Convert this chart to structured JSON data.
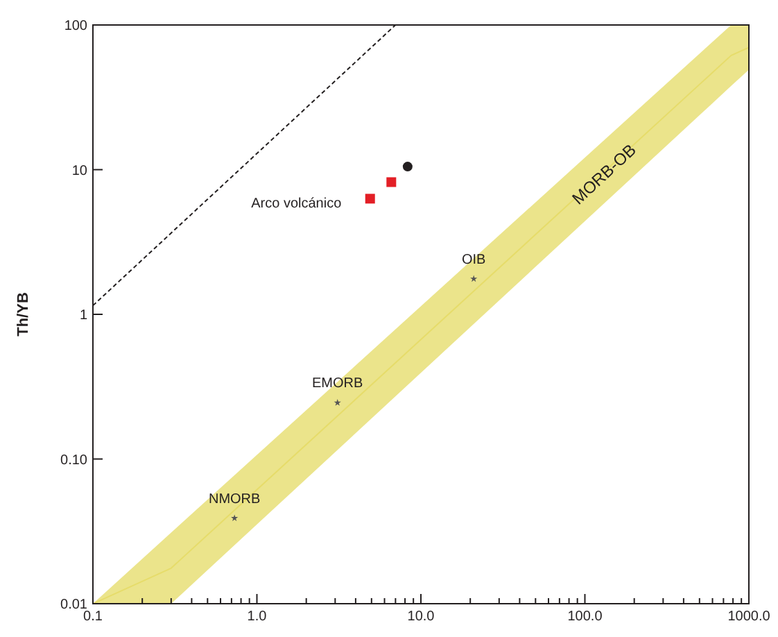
{
  "chart_data": {
    "type": "scatter",
    "ylabel": "Th/YB",
    "log": "xy",
    "grid": false,
    "xlim": [
      0.1,
      1000
    ],
    "ylim": [
      0.01,
      100
    ],
    "xticks": [
      {
        "value": 0.1,
        "label": "0.1"
      },
      {
        "value": 0.2,
        "label": null
      },
      {
        "value": 0.3,
        "label": null
      },
      {
        "value": 0.4,
        "label": null
      },
      {
        "value": 0.5,
        "label": null
      },
      {
        "value": 0.6,
        "label": null
      },
      {
        "value": 0.7,
        "label": null
      },
      {
        "value": 0.8,
        "label": null
      },
      {
        "value": 0.9,
        "label": null
      },
      {
        "value": 1,
        "label": "1.0"
      },
      {
        "value": 2,
        "label": null
      },
      {
        "value": 3,
        "label": null
      },
      {
        "value": 4,
        "label": null
      },
      {
        "value": 5,
        "label": null
      },
      {
        "value": 6,
        "label": null
      },
      {
        "value": 7,
        "label": null
      },
      {
        "value": 8,
        "label": null
      },
      {
        "value": 9,
        "label": null
      },
      {
        "value": 10,
        "label": "10.0"
      },
      {
        "value": 20,
        "label": null
      },
      {
        "value": 30,
        "label": null
      },
      {
        "value": 40,
        "label": null
      },
      {
        "value": 50,
        "label": null
      },
      {
        "value": 60,
        "label": null
      },
      {
        "value": 70,
        "label": null
      },
      {
        "value": 80,
        "label": null
      },
      {
        "value": 90,
        "label": null
      },
      {
        "value": 100,
        "label": "100.0"
      },
      {
        "value": 200,
        "label": null
      },
      {
        "value": 300,
        "label": null
      },
      {
        "value": 400,
        "label": null
      },
      {
        "value": 500,
        "label": null
      },
      {
        "value": 600,
        "label": null
      },
      {
        "value": 700,
        "label": null
      },
      {
        "value": 800,
        "label": null
      },
      {
        "value": 900,
        "label": null
      },
      {
        "value": 1000,
        "label": "1000.0"
      }
    ],
    "yticks": [
      0.01,
      {
        "value": 0.1,
        "label": "0.10"
      },
      1,
      10,
      100
    ],
    "series": [
      {
        "type": "line",
        "color": "#e6dc6a",
        "marker": "none",
        "x": [
          0.1,
          0.3,
          780,
          1000
        ],
        "values": [
          0.01,
          0.0176,
          61.6,
          70
        ],
        "upper": [
          0.01,
          0.031,
          100,
          100
        ],
        "lower": [
          0.01,
          0.01,
          37.9,
          49
        ]
      },
      {
        "type": "line",
        "color": "#231f20",
        "line_style": "dashed",
        "marker": "none",
        "x": [
          0.1,
          7
        ],
        "values": [
          1.15,
          100
        ]
      },
      {
        "color": "#555555",
        "marker": "star",
        "x": [
          0.73,
          3.1,
          21
        ],
        "values": [
          0.039,
          0.245,
          1.76
        ]
      },
      {
        "color": "#e31f26",
        "marker": "square",
        "x": [
          4.9,
          6.6
        ],
        "values": [
          6.3,
          8.2
        ]
      },
      {
        "color": "#231f20",
        "marker": "circle",
        "x": [
          8.3
        ],
        "values": [
          10.5
        ]
      }
    ],
    "annotations": [
      {
        "text": "NMORB",
        "x": 0.73,
        "y": 0.039
      },
      {
        "text": "EMORB",
        "x": 3.1,
        "y": 0.245
      },
      {
        "text": "OIB",
        "x": 21,
        "y": 1.76
      },
      "Arco volcánico",
      "MORB-OB"
    ]
  }
}
